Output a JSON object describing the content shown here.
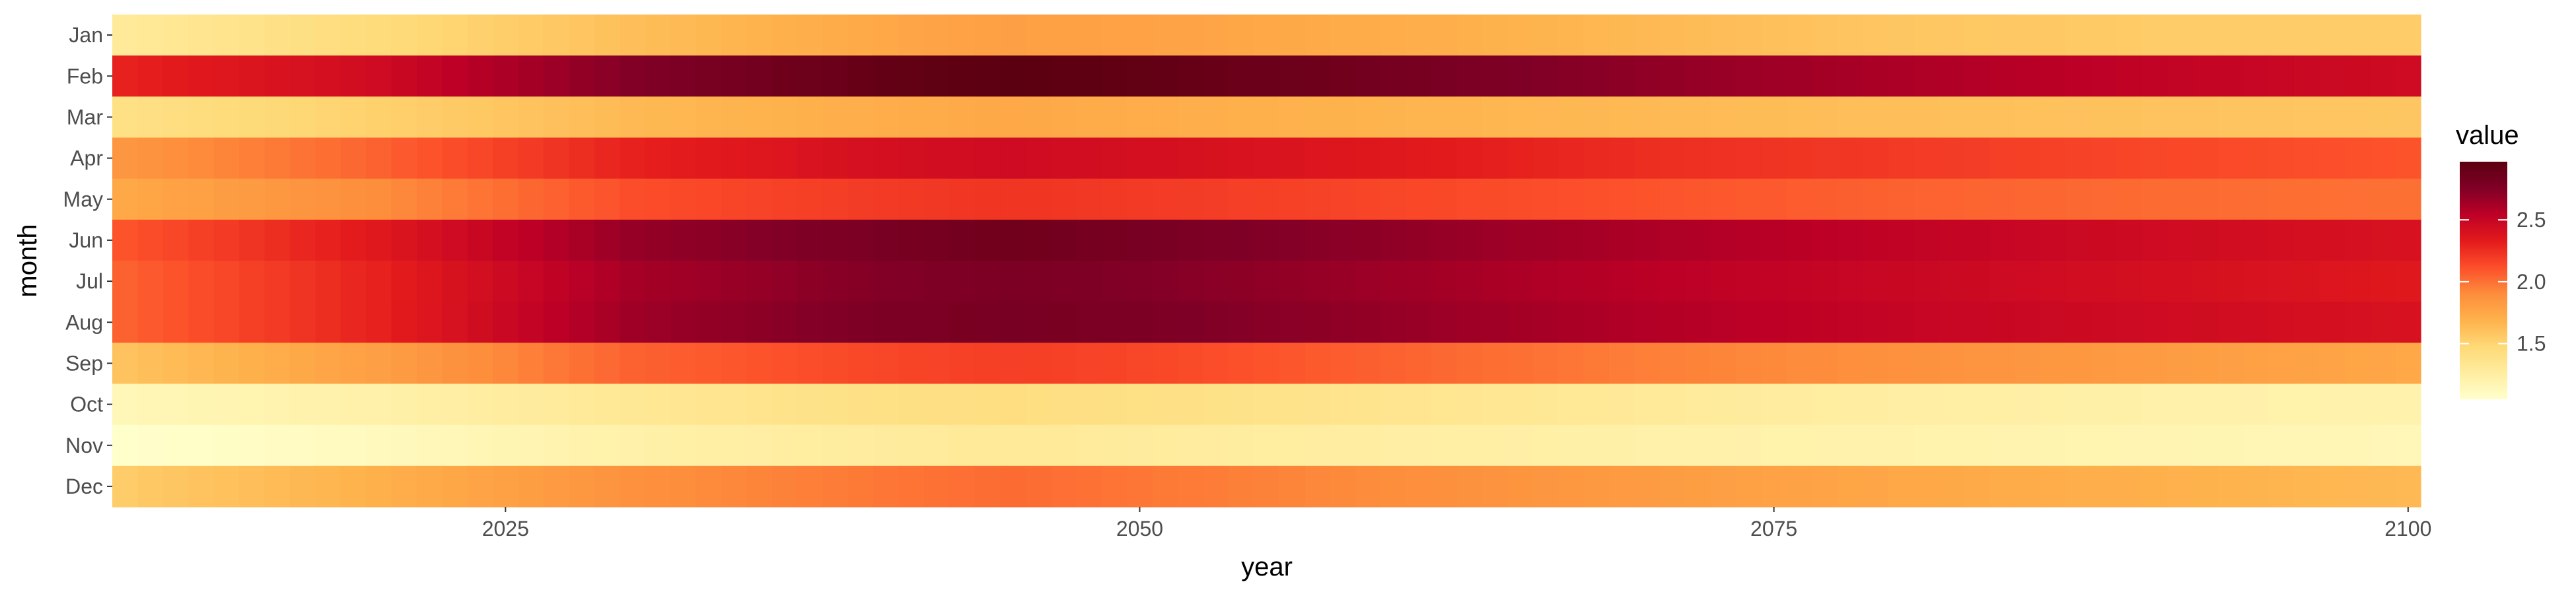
{
  "chart_data": {
    "type": "heatmap",
    "xlabel": "year",
    "ylabel": "month",
    "x_range": [
      2010,
      2100
    ],
    "x_ticks": [
      2025,
      2050,
      2075,
      2100
    ],
    "x_tick_labels": [
      "2025",
      "2050",
      "2075",
      "2100"
    ],
    "months": [
      "Jan",
      "Feb",
      "Mar",
      "Apr",
      "May",
      "Jun",
      "Jul",
      "Aug",
      "Sep",
      "Oct",
      "Nov",
      "Dec"
    ],
    "anchor_years": [
      2010,
      2020,
      2030,
      2040,
      2045,
      2050,
      2060,
      2070,
      2080,
      2090,
      2100
    ],
    "monthly_values": {
      "Jan": [
        1.3,
        1.45,
        1.62,
        1.75,
        1.8,
        1.78,
        1.72,
        1.65,
        1.58,
        1.55,
        1.55
      ],
      "Feb": [
        2.3,
        2.45,
        2.75,
        2.92,
        2.97,
        2.93,
        2.82,
        2.7,
        2.6,
        2.52,
        2.45
      ],
      "Mar": [
        1.4,
        1.52,
        1.65,
        1.72,
        1.75,
        1.72,
        1.68,
        1.65,
        1.62,
        1.6,
        1.58
      ],
      "Apr": [
        1.85,
        2.05,
        2.3,
        2.42,
        2.45,
        2.42,
        2.35,
        2.25,
        2.2,
        2.15,
        2.1
      ],
      "May": [
        1.75,
        1.9,
        2.12,
        2.2,
        2.22,
        2.2,
        2.15,
        2.1,
        2.05,
        2.02,
        2.0
      ],
      "Jun": [
        2.1,
        2.35,
        2.68,
        2.8,
        2.85,
        2.8,
        2.7,
        2.6,
        2.52,
        2.45,
        2.4
      ],
      "Jul": [
        2.05,
        2.3,
        2.62,
        2.75,
        2.78,
        2.75,
        2.65,
        2.55,
        2.48,
        2.42,
        2.35
      ],
      "Aug": [
        2.05,
        2.3,
        2.65,
        2.78,
        2.8,
        2.78,
        2.68,
        2.58,
        2.5,
        2.45,
        2.4
      ],
      "Sep": [
        1.6,
        1.8,
        2.05,
        2.15,
        2.18,
        2.15,
        2.05,
        1.95,
        1.88,
        1.82,
        1.75
      ],
      "Oct": [
        1.15,
        1.22,
        1.32,
        1.4,
        1.42,
        1.4,
        1.35,
        1.3,
        1.25,
        1.22,
        1.2
      ],
      "Nov": [
        1.05,
        1.12,
        1.22,
        1.28,
        1.3,
        1.28,
        1.25,
        1.22,
        1.2,
        1.18,
        1.15
      ],
      "Dec": [
        1.55,
        1.7,
        1.88,
        1.98,
        2.02,
        1.98,
        1.9,
        1.82,
        1.75,
        1.7,
        1.65
      ]
    },
    "legend_title": "value",
    "legend_ticks": [
      1.5,
      2.0,
      2.5
    ],
    "legend_tick_labels": [
      "1.5",
      "2.0",
      "2.5"
    ],
    "value_range": [
      1.05,
      2.97
    ],
    "colormap": [
      "#ffffcc",
      "#ffeda0",
      "#fed976",
      "#feb24c",
      "#fd8d3c",
      "#fc4e2a",
      "#e31a1c",
      "#bd0026",
      "#800026",
      "#5b0010"
    ],
    "grid": false,
    "legend_position": "right",
    "background": "#ffffff",
    "text_color": "#4d4d4d"
  }
}
